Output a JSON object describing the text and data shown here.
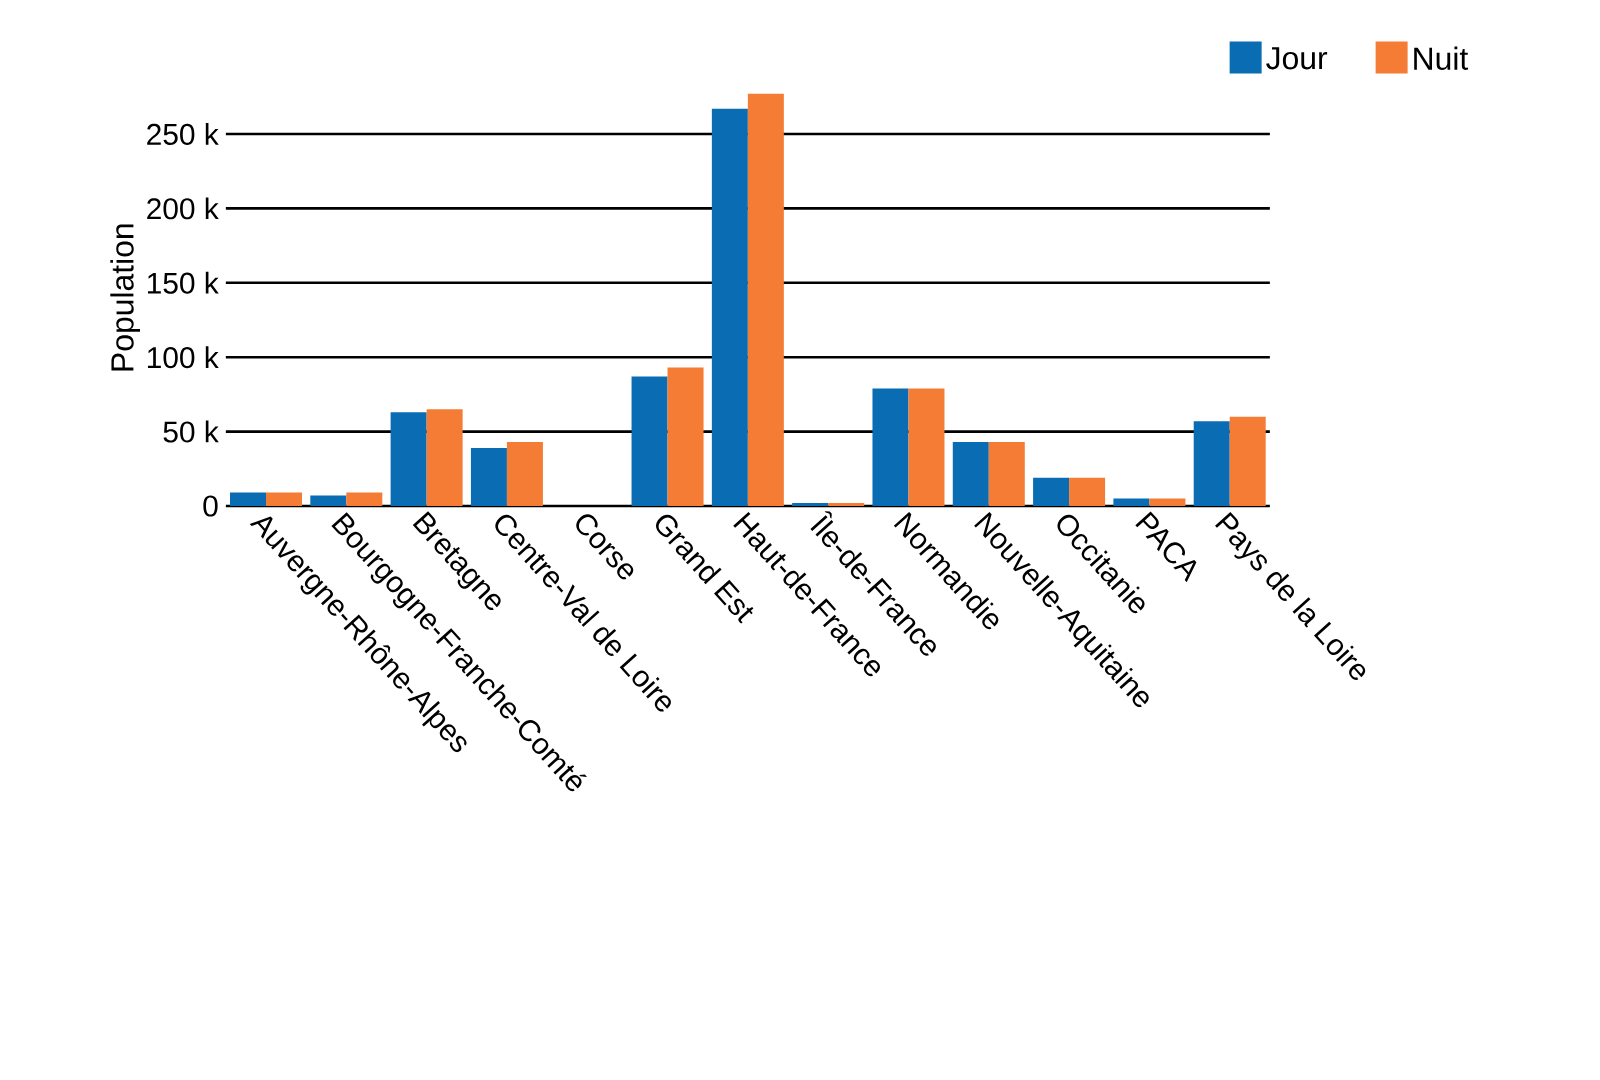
{
  "chart_data": {
    "type": "bar",
    "ylabel": "Population",
    "categories": [
      "Auvergne-Rhône-Alpes",
      "Bourgogne-Franche-Comté",
      "Bretagne",
      "Centre-Val de Loire",
      "Corse",
      "Grand Est",
      "Haut-de-France",
      "Île-de-France",
      "Normandie",
      "Nouvelle-Aquitaine",
      "Occitanie",
      "PACA",
      "Pays de la Loire"
    ],
    "series": [
      {
        "name": "Jour",
        "color": "#0a6db3",
        "values": [
          9000,
          7000,
          63000,
          39000,
          0,
          87000,
          267000,
          2000,
          79000,
          43000,
          19000,
          5000,
          57000
        ]
      },
      {
        "name": "Nuit",
        "color": "#f47c35",
        "values": [
          9000,
          9000,
          65000,
          43000,
          0,
          93000,
          277000,
          2000,
          79000,
          43000,
          19000,
          5000,
          60000
        ]
      }
    ],
    "ylim": [
      0,
      280000
    ],
    "yticks": [
      {
        "value": 0,
        "label": "0"
      },
      {
        "value": 50000,
        "label": "50 k"
      },
      {
        "value": 100000,
        "label": "100 k"
      },
      {
        "value": 150000,
        "label": "150 k"
      },
      {
        "value": 200000,
        "label": "200 k"
      },
      {
        "value": 250000,
        "label": "250 k"
      }
    ],
    "grid": "y",
    "legend": "top right"
  }
}
